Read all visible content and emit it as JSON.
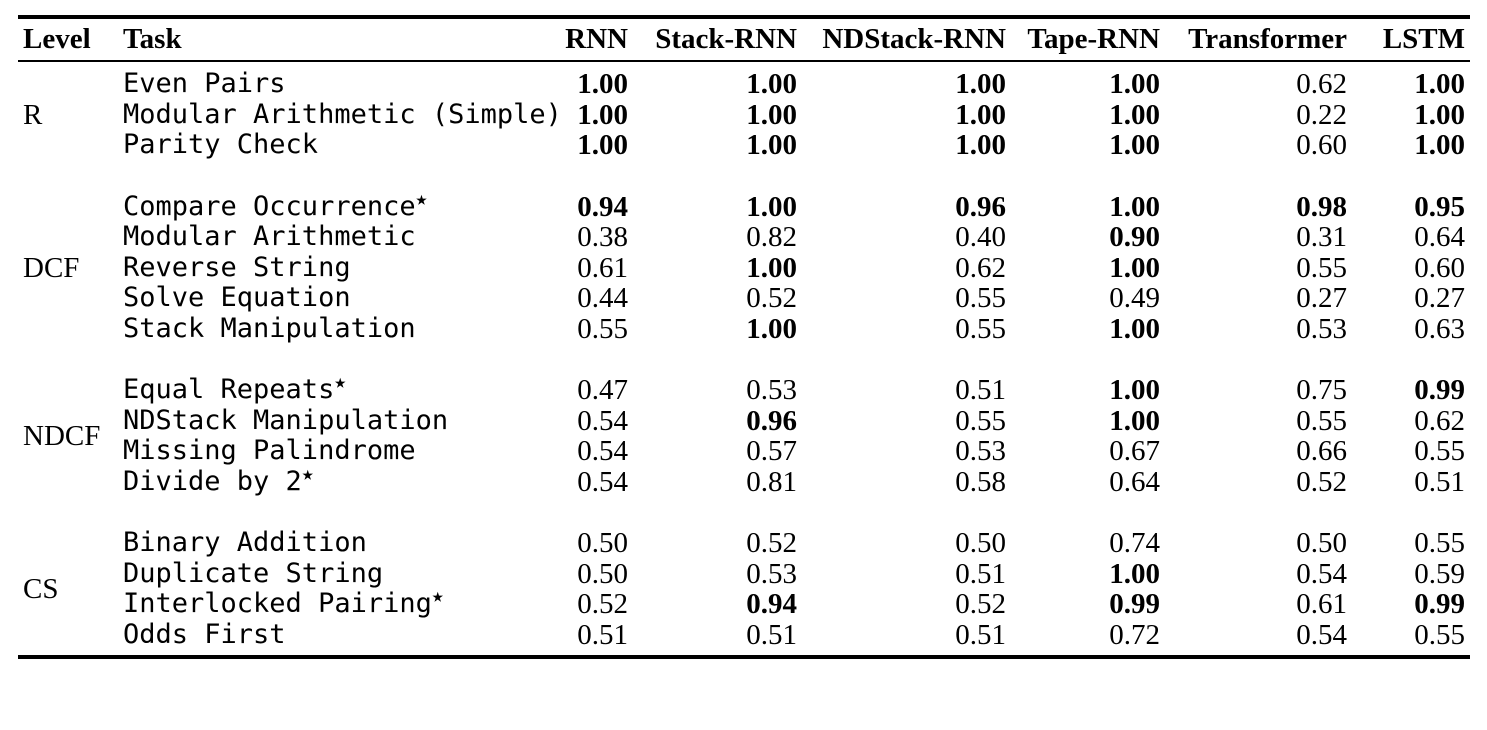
{
  "table": {
    "star_symbol": "★",
    "columns": [
      {
        "key": "level",
        "label": "Level"
      },
      {
        "key": "task",
        "label": "Task"
      },
      {
        "key": "rnn",
        "label": "RNN"
      },
      {
        "key": "stack_rnn",
        "label": "Stack-RNN"
      },
      {
        "key": "ndstack_rnn",
        "label": "NDStack-RNN"
      },
      {
        "key": "tape_rnn",
        "label": "Tape-RNN"
      },
      {
        "key": "transformer",
        "label": "Transformer"
      },
      {
        "key": "lstm",
        "label": "LSTM"
      }
    ],
    "sections": [
      {
        "level": "R",
        "rows": [
          {
            "task": "Even Pairs",
            "star": false,
            "values": [
              {
                "v": "1.00",
                "b": true
              },
              {
                "v": "1.00",
                "b": true
              },
              {
                "v": "1.00",
                "b": true
              },
              {
                "v": "1.00",
                "b": true
              },
              {
                "v": "0.62",
                "b": false
              },
              {
                "v": "1.00",
                "b": true
              }
            ]
          },
          {
            "task": "Modular Arithmetic (Simple)",
            "star": false,
            "values": [
              {
                "v": "1.00",
                "b": true
              },
              {
                "v": "1.00",
                "b": true
              },
              {
                "v": "1.00",
                "b": true
              },
              {
                "v": "1.00",
                "b": true
              },
              {
                "v": "0.22",
                "b": false
              },
              {
                "v": "1.00",
                "b": true
              }
            ]
          },
          {
            "task": "Parity Check",
            "star": false,
            "values": [
              {
                "v": "1.00",
                "b": true
              },
              {
                "v": "1.00",
                "b": true
              },
              {
                "v": "1.00",
                "b": true
              },
              {
                "v": "1.00",
                "b": true
              },
              {
                "v": "0.60",
                "b": false
              },
              {
                "v": "1.00",
                "b": true
              }
            ]
          }
        ]
      },
      {
        "level": "DCF",
        "rows": [
          {
            "task": "Compare Occurrence",
            "star": true,
            "values": [
              {
                "v": "0.94",
                "b": true
              },
              {
                "v": "1.00",
                "b": true
              },
              {
                "v": "0.96",
                "b": true
              },
              {
                "v": "1.00",
                "b": true
              },
              {
                "v": "0.98",
                "b": true
              },
              {
                "v": "0.95",
                "b": true
              }
            ]
          },
          {
            "task": "Modular Arithmetic",
            "star": false,
            "values": [
              {
                "v": "0.38",
                "b": false
              },
              {
                "v": "0.82",
                "b": false
              },
              {
                "v": "0.40",
                "b": false
              },
              {
                "v": "0.90",
                "b": true
              },
              {
                "v": "0.31",
                "b": false
              },
              {
                "v": "0.64",
                "b": false
              }
            ]
          },
          {
            "task": "Reverse String",
            "star": false,
            "values": [
              {
                "v": "0.61",
                "b": false
              },
              {
                "v": "1.00",
                "b": true
              },
              {
                "v": "0.62",
                "b": false
              },
              {
                "v": "1.00",
                "b": true
              },
              {
                "v": "0.55",
                "b": false
              },
              {
                "v": "0.60",
                "b": false
              }
            ]
          },
          {
            "task": "Solve Equation",
            "star": false,
            "values": [
              {
                "v": "0.44",
                "b": false
              },
              {
                "v": "0.52",
                "b": false
              },
              {
                "v": "0.55",
                "b": false
              },
              {
                "v": "0.49",
                "b": false
              },
              {
                "v": "0.27",
                "b": false
              },
              {
                "v": "0.27",
                "b": false
              }
            ]
          },
          {
            "task": "Stack Manipulation",
            "star": false,
            "values": [
              {
                "v": "0.55",
                "b": false
              },
              {
                "v": "1.00",
                "b": true
              },
              {
                "v": "0.55",
                "b": false
              },
              {
                "v": "1.00",
                "b": true
              },
              {
                "v": "0.53",
                "b": false
              },
              {
                "v": "0.63",
                "b": false
              }
            ]
          }
        ]
      },
      {
        "level": "NDCF",
        "rows": [
          {
            "task": "Equal Repeats",
            "star": true,
            "values": [
              {
                "v": "0.47",
                "b": false
              },
              {
                "v": "0.53",
                "b": false
              },
              {
                "v": "0.51",
                "b": false
              },
              {
                "v": "1.00",
                "b": true
              },
              {
                "v": "0.75",
                "b": false
              },
              {
                "v": "0.99",
                "b": true
              }
            ]
          },
          {
            "task": "NDStack Manipulation",
            "star": false,
            "values": [
              {
                "v": "0.54",
                "b": false
              },
              {
                "v": "0.96",
                "b": true
              },
              {
                "v": "0.55",
                "b": false
              },
              {
                "v": "1.00",
                "b": true
              },
              {
                "v": "0.55",
                "b": false
              },
              {
                "v": "0.62",
                "b": false
              }
            ]
          },
          {
            "task": "Missing Palindrome",
            "star": false,
            "values": [
              {
                "v": "0.54",
                "b": false
              },
              {
                "v": "0.57",
                "b": false
              },
              {
                "v": "0.53",
                "b": false
              },
              {
                "v": "0.67",
                "b": false
              },
              {
                "v": "0.66",
                "b": false
              },
              {
                "v": "0.55",
                "b": false
              }
            ]
          },
          {
            "task": "Divide by 2",
            "star": true,
            "values": [
              {
                "v": "0.54",
                "b": false
              },
              {
                "v": "0.81",
                "b": false
              },
              {
                "v": "0.58",
                "b": false
              },
              {
                "v": "0.64",
                "b": false
              },
              {
                "v": "0.52",
                "b": false
              },
              {
                "v": "0.51",
                "b": false
              }
            ]
          }
        ]
      },
      {
        "level": "CS",
        "rows": [
          {
            "task": "Binary Addition",
            "star": false,
            "values": [
              {
                "v": "0.50",
                "b": false
              },
              {
                "v": "0.52",
                "b": false
              },
              {
                "v": "0.50",
                "b": false
              },
              {
                "v": "0.74",
                "b": false
              },
              {
                "v": "0.50",
                "b": false
              },
              {
                "v": "0.55",
                "b": false
              }
            ]
          },
          {
            "task": "Duplicate String",
            "star": false,
            "values": [
              {
                "v": "0.50",
                "b": false
              },
              {
                "v": "0.53",
                "b": false
              },
              {
                "v": "0.51",
                "b": false
              },
              {
                "v": "1.00",
                "b": true
              },
              {
                "v": "0.54",
                "b": false
              },
              {
                "v": "0.59",
                "b": false
              }
            ]
          },
          {
            "task": "Interlocked Pairing",
            "star": true,
            "values": [
              {
                "v": "0.52",
                "b": false
              },
              {
                "v": "0.94",
                "b": true
              },
              {
                "v": "0.52",
                "b": false
              },
              {
                "v": "0.99",
                "b": true
              },
              {
                "v": "0.61",
                "b": false
              },
              {
                "v": "0.99",
                "b": true
              }
            ]
          },
          {
            "task": "Odds First",
            "star": false,
            "values": [
              {
                "v": "0.51",
                "b": false
              },
              {
                "v": "0.51",
                "b": false
              },
              {
                "v": "0.51",
                "b": false
              },
              {
                "v": "0.72",
                "b": false
              },
              {
                "v": "0.54",
                "b": false
              },
              {
                "v": "0.55",
                "b": false
              }
            ]
          }
        ]
      }
    ]
  },
  "colors": {
    "background": "#ffffff",
    "text": "#000000",
    "rule": "#000000"
  }
}
